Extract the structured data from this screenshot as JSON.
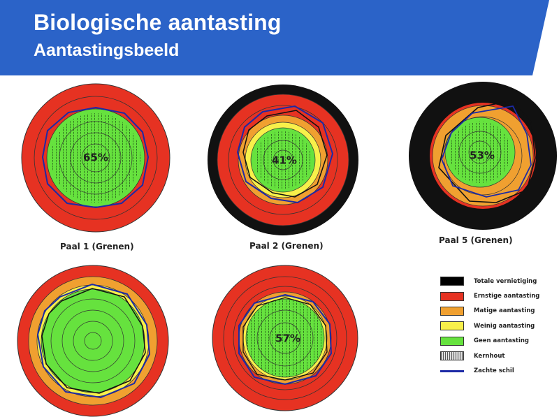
{
  "header": {
    "title": "Biologische aantasting",
    "subtitle": "Aantastingsbeeld",
    "color": "#2b63c8"
  },
  "poles": [
    {
      "id": "paal-1",
      "caption": "Paal 1 (Grenen)",
      "percentage": "65%"
    },
    {
      "id": "paal-2",
      "caption": "Paal 2 (Grenen)",
      "percentage": "41%"
    },
    {
      "id": "paal-5",
      "caption": "Paal 5 (Grenen)",
      "percentage": "53%"
    },
    {
      "id": "paal-4",
      "caption": "",
      "percentage": ""
    },
    {
      "id": "paal-3",
      "caption": "",
      "percentage": "57%"
    }
  ],
  "legend": [
    {
      "label": "Totale vernietiging",
      "color": "#000000"
    },
    {
      "label": "Ernstige aantasting",
      "color": "#e63222"
    },
    {
      "label": "Matige aantasting",
      "color": "#f0a030"
    },
    {
      "label": "Weinig aantasting",
      "color": "#f8f04a"
    },
    {
      "label": "Geen aantasting",
      "color": "#66e23e"
    },
    {
      "label": "Kernhout",
      "pattern": "hatched"
    },
    {
      "label": "Zachte schil",
      "color": "#1c2aa6",
      "kind": "line"
    }
  ]
}
